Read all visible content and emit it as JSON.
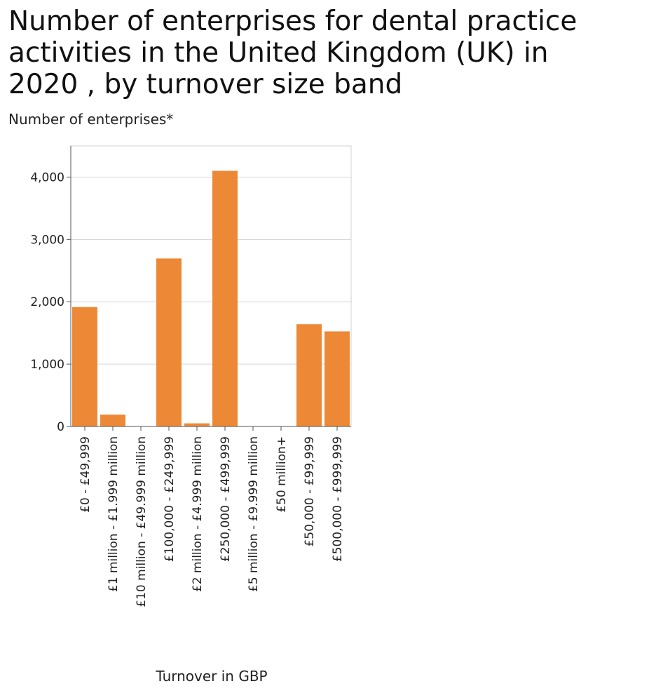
{
  "chart_data": {
    "type": "bar",
    "title_lines": [
      "Number of enterprises for dental practice",
      "activities in the United Kingdom (UK) in",
      "2020 , by turnover size band"
    ],
    "xlabel": "Turnover in GBP",
    "ylabel": "Number of enterprises*",
    "categories": [
      "£0 - £49,999",
      "£1 million - £1.999 million",
      "£10 million - £49.999 million",
      "£100,000 - £249,999",
      "£2 million - £4.999 million",
      "£250,000 - £499,999",
      "£5 million - £9.999 million",
      "£50 million+",
      "£50,000 - £99,999",
      "£500,000 - £999,999"
    ],
    "values": [
      1915,
      190,
      5,
      2695,
      50,
      4100,
      5,
      5,
      1640,
      1525
    ],
    "ylim": [
      0,
      4500
    ],
    "yticks": [
      0,
      1000,
      2000,
      3000,
      4000
    ],
    "ytick_labels": [
      "0",
      "1,000",
      "2,000",
      "3,000",
      "4,000"
    ],
    "grid": true,
    "bar_color": "#ed8936"
  }
}
